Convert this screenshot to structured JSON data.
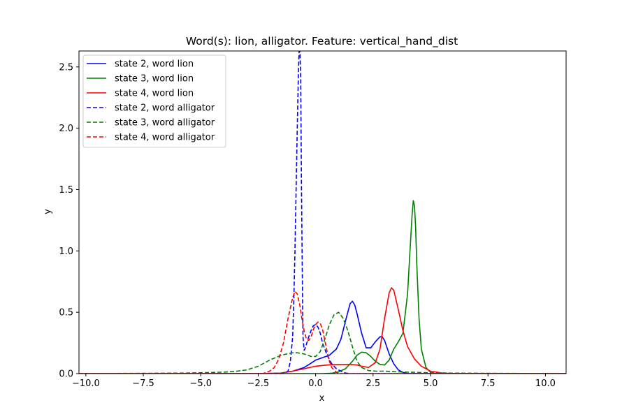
{
  "chart_data": {
    "type": "line",
    "title": "Word(s): lion, alligator. Feature: vertical_hand_dist",
    "xlabel": "x",
    "ylabel": "y",
    "xlim": [
      -10.3,
      10.9
    ],
    "ylim": [
      0,
      2.63
    ],
    "grid": false,
    "legend_position": "top-left",
    "xticks": [
      -10.0,
      -7.5,
      -5.0,
      -2.5,
      0.0,
      2.5,
      5.0,
      7.5,
      10.0
    ],
    "xtick_labels": [
      "−10.0",
      "−7.5",
      "−5.0",
      "−2.5",
      "0.0",
      "2.5",
      "5.0",
      "7.5",
      "10.0"
    ],
    "yticks": [
      0.0,
      0.5,
      1.0,
      1.5,
      2.0,
      2.5
    ],
    "ytick_labels": [
      "0.0",
      "0.5",
      "1.0",
      "1.5",
      "2.0",
      "2.5"
    ],
    "series": [
      {
        "name": "state 2, word lion",
        "color": "#0000ff",
        "style": "solid",
        "x": [
          -10.3,
          -2.0,
          -1.5,
          -1.0,
          -0.5,
          -0.2,
          0.0,
          0.3,
          0.6,
          0.9,
          1.1,
          1.3,
          1.5,
          1.6,
          1.7,
          1.8,
          2.0,
          2.2,
          2.4,
          2.6,
          2.8,
          2.9,
          3.0,
          3.2,
          3.4,
          3.6,
          3.8,
          4.0,
          4.5,
          10.9
        ],
        "y": [
          0.0,
          0.0,
          0.005,
          0.02,
          0.05,
          0.085,
          0.11,
          0.13,
          0.15,
          0.2,
          0.28,
          0.43,
          0.57,
          0.59,
          0.56,
          0.49,
          0.33,
          0.21,
          0.21,
          0.26,
          0.3,
          0.3,
          0.27,
          0.16,
          0.08,
          0.03,
          0.01,
          0.0,
          0.0,
          0.0
        ]
      },
      {
        "name": "state 3, word lion",
        "color": "#008000",
        "style": "solid",
        "x": [
          -10.3,
          0.3,
          0.7,
          1.0,
          1.3,
          1.6,
          1.8,
          2.0,
          2.2,
          2.4,
          2.6,
          2.8,
          3.0,
          3.2,
          3.4,
          3.6,
          3.8,
          4.0,
          4.1,
          4.2,
          4.25,
          4.3,
          4.35,
          4.4,
          4.5,
          4.6,
          4.8,
          5.0,
          5.2,
          10.9
        ],
        "y": [
          0.0,
          0.0,
          0.003,
          0.015,
          0.04,
          0.1,
          0.15,
          0.175,
          0.17,
          0.14,
          0.1,
          0.075,
          0.07,
          0.11,
          0.2,
          0.26,
          0.33,
          0.65,
          0.98,
          1.3,
          1.41,
          1.37,
          1.2,
          0.9,
          0.45,
          0.2,
          0.05,
          0.01,
          0.0,
          0.0
        ]
      },
      {
        "name": "state 4, word lion",
        "color": "#ff0000",
        "style": "solid",
        "x": [
          -10.3,
          -2.5,
          -1.5,
          -1.0,
          -0.5,
          0.0,
          0.5,
          1.0,
          1.5,
          1.8,
          2.0,
          2.3,
          2.6,
          2.8,
          3.0,
          3.2,
          3.3,
          3.4,
          3.6,
          3.8,
          4.0,
          4.3,
          4.6,
          5.0,
          5.5,
          6.0,
          10.9
        ],
        "y": [
          0.0,
          0.0,
          0.005,
          0.02,
          0.04,
          0.06,
          0.07,
          0.075,
          0.075,
          0.07,
          0.06,
          0.05,
          0.09,
          0.2,
          0.45,
          0.66,
          0.7,
          0.68,
          0.52,
          0.35,
          0.22,
          0.12,
          0.06,
          0.02,
          0.005,
          0.0,
          0.0
        ]
      },
      {
        "name": "state 2, word alligator",
        "color": "#0000ff",
        "style": "dashed",
        "x": [
          -10.3,
          -1.4,
          -1.2,
          -1.1,
          -1.0,
          -0.95,
          -0.9,
          -0.85,
          -0.8,
          -0.75,
          -0.72,
          -0.7,
          -0.68,
          -0.65,
          -0.62,
          -0.58,
          -0.55,
          -0.5,
          -0.45,
          -0.4,
          -0.3,
          -0.2,
          -0.1,
          0.0,
          0.1,
          0.2,
          0.3,
          0.5,
          0.7,
          0.9,
          1.1,
          1.3,
          1.5,
          10.9
        ],
        "y": [
          0.0,
          0.0,
          0.02,
          0.1,
          0.3,
          0.6,
          1.0,
          1.5,
          2.0,
          2.45,
          2.63,
          2.63,
          2.63,
          2.4,
          1.6,
          0.8,
          0.3,
          0.19,
          0.21,
          0.24,
          0.3,
          0.35,
          0.39,
          0.4,
          0.38,
          0.33,
          0.25,
          0.15,
          0.08,
          0.04,
          0.02,
          0.005,
          0.0,
          0.0
        ]
      },
      {
        "name": "state 3, word alligator",
        "color": "#008000",
        "style": "dashed",
        "x": [
          -10.3,
          -8.0,
          -6.0,
          -5.0,
          -4.0,
          -3.5,
          -3.0,
          -2.5,
          -2.0,
          -1.5,
          -1.0,
          -0.8,
          -0.5,
          -0.2,
          0.0,
          0.2,
          0.4,
          0.6,
          0.8,
          1.0,
          1.2,
          1.4,
          1.6,
          1.8,
          2.0,
          2.3,
          2.6,
          3.0,
          3.5,
          4.0,
          5.0,
          6.0,
          8.0,
          10.9
        ],
        "y": [
          0.0,
          0.002,
          0.004,
          0.007,
          0.012,
          0.018,
          0.03,
          0.06,
          0.11,
          0.15,
          0.17,
          0.17,
          0.16,
          0.14,
          0.14,
          0.18,
          0.28,
          0.4,
          0.48,
          0.5,
          0.45,
          0.35,
          0.22,
          0.1,
          0.05,
          0.025,
          0.02,
          0.02,
          0.015,
          0.012,
          0.007,
          0.004,
          0.002,
          0.0
        ]
      },
      {
        "name": "state 4, word alligator",
        "color": "#ff0000",
        "style": "dashed",
        "x": [
          -10.3,
          -2.3,
          -2.0,
          -1.8,
          -1.6,
          -1.4,
          -1.2,
          -1.0,
          -0.9,
          -0.8,
          -0.7,
          -0.6,
          -0.5,
          -0.4,
          -0.3,
          -0.2,
          -0.1,
          0.0,
          0.1,
          0.2,
          0.3,
          0.4,
          0.5,
          0.6,
          0.7,
          0.9,
          1.1,
          10.9
        ],
        "y": [
          0.0,
          0.0,
          0.02,
          0.05,
          0.12,
          0.25,
          0.45,
          0.62,
          0.67,
          0.65,
          0.57,
          0.45,
          0.35,
          0.28,
          0.27,
          0.3,
          0.36,
          0.4,
          0.42,
          0.41,
          0.36,
          0.27,
          0.18,
          0.1,
          0.05,
          0.01,
          0.0,
          0.0
        ]
      }
    ]
  }
}
